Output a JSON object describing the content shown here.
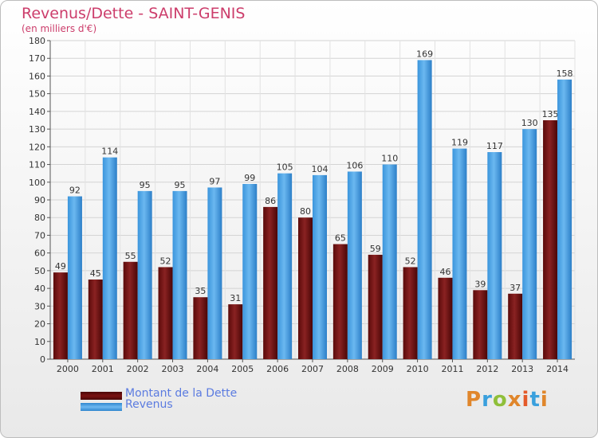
{
  "header": {
    "title": "Revenus/Dette - SAINT-GENIS",
    "subtitle": "(en milliers d'€)"
  },
  "chart_data": {
    "type": "bar",
    "categories": [
      "2000",
      "2001",
      "2002",
      "2003",
      "2004",
      "2005",
      "2006",
      "2007",
      "2008",
      "2009",
      "2010",
      "2011",
      "2012",
      "2013",
      "2014"
    ],
    "series": [
      {
        "name": "Montant de la Dette",
        "color": "#7a1212",
        "values": [
          49,
          45,
          55,
          52,
          35,
          31,
          86,
          80,
          65,
          59,
          52,
          46,
          39,
          37,
          135
        ]
      },
      {
        "name": "Revenus",
        "color": "#4da3e6",
        "values": [
          92,
          114,
          95,
          95,
          97,
          99,
          105,
          104,
          106,
          110,
          169,
          119,
          117,
          130,
          158
        ]
      }
    ],
    "ylim": [
      0,
      180
    ],
    "ytick_step": 10,
    "grid": true,
    "legend": "bottom-left"
  },
  "legend": {
    "items": [
      {
        "label": "Montant de la Dette",
        "color": "#7a1212"
      },
      {
        "label": "Revenus",
        "color": "#4da3e6"
      }
    ]
  },
  "logo": {
    "text": "Proxiti",
    "colors": [
      "#e0862b",
      "#3aa0dd",
      "#8fbf3a",
      "#e0862b",
      "#e45a2a",
      "#3aa0dd",
      "#e0862b"
    ]
  }
}
